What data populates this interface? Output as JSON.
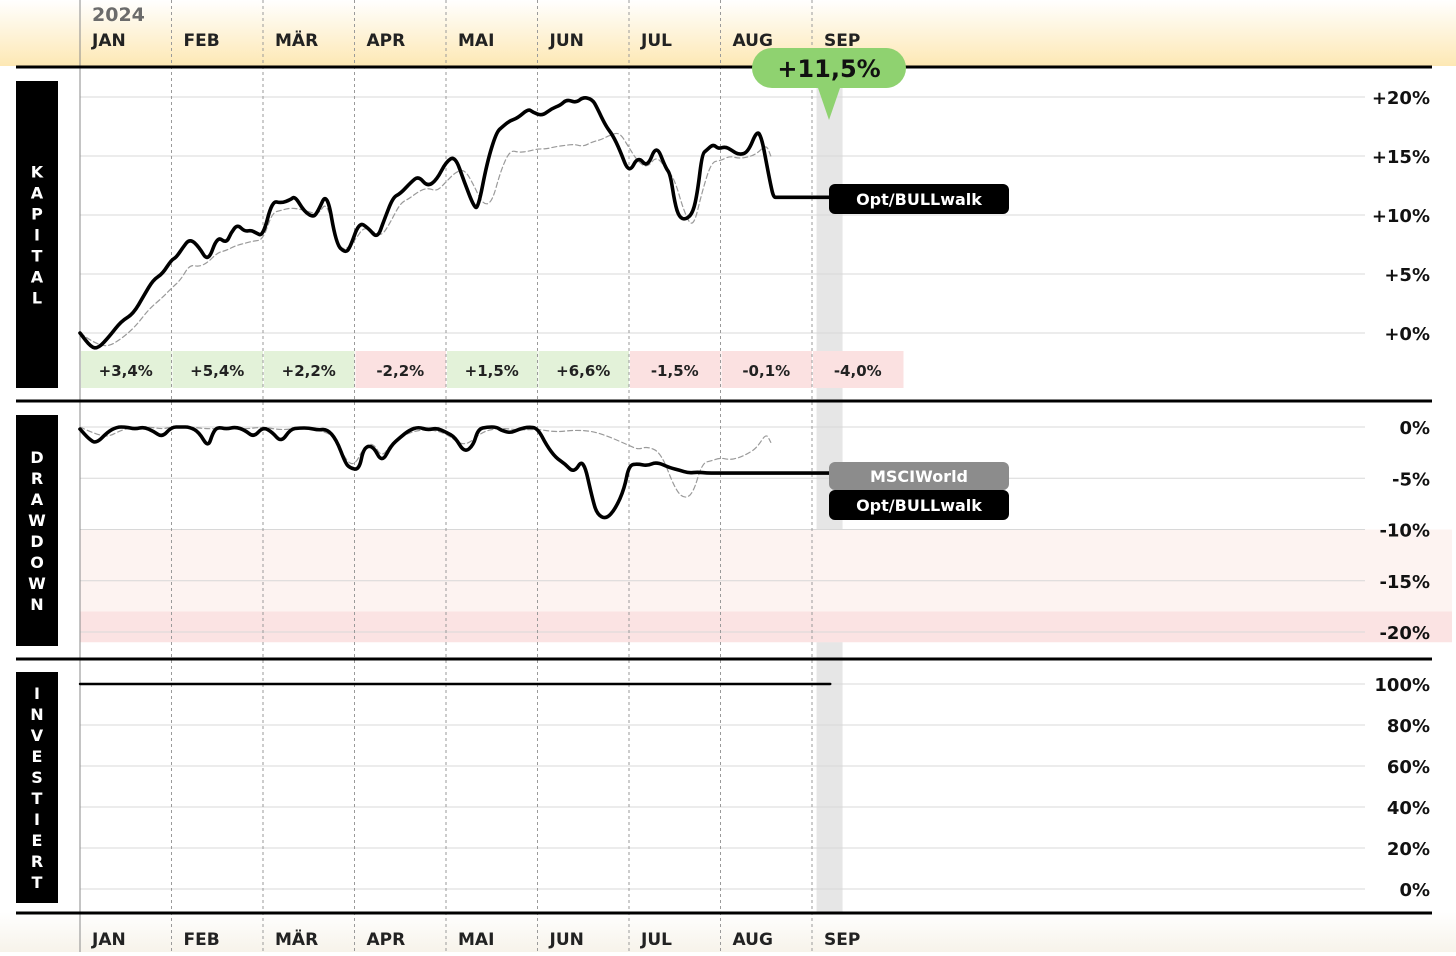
{
  "header": {
    "year": "2024"
  },
  "months": [
    "JAN",
    "FEB",
    "MÄR",
    "APR",
    "MAI",
    "JUN",
    "JUL",
    "AUG",
    "SEP"
  ],
  "colors": {
    "header_bg_top": "#ffffff",
    "header_bg_bottom": "#fde8b4",
    "positive_month": "#e3f2d9",
    "negative_month": "#fbe1e1",
    "badge_green": "#8fd270",
    "strategy_line": "#000000",
    "benchmark_line": "#9a9a9a",
    "current_week_band": "#e6e6e6",
    "drawdown_zone_light": "#fdf3f1",
    "drawdown_zone_dark": "#fbe3e3"
  },
  "chart_data": [
    {
      "type": "line",
      "panel_label": "KAPITAL",
      "ylim": [
        -2,
        20
      ],
      "yticks": [
        20,
        15,
        10,
        5,
        0
      ],
      "ytick_labels": [
        "+20%",
        "+15%",
        "+10%",
        "+5%",
        "+0%"
      ],
      "x_unit_note_hidden": true,
      "strategy_label": "Opt/BULLwalk",
      "badge": {
        "label": "+11,5%"
      },
      "monthly_returns": [
        {
          "label": "+3,4%",
          "value": 3.4
        },
        {
          "label": "+5,4%",
          "value": 5.4
        },
        {
          "label": "+2,2%",
          "value": 2.2
        },
        {
          "label": "-2,2%",
          "value": -2.2
        },
        {
          "label": "+1,5%",
          "value": 1.5
        },
        {
          "label": "+6,6%",
          "value": 6.6
        },
        {
          "label": "-1,5%",
          "value": -1.5
        },
        {
          "label": "-0,1%",
          "value": -0.1
        },
        {
          "label": "-4,0%",
          "value": -4.0
        }
      ],
      "series": [
        {
          "role": "strategy",
          "x": [
            0,
            0.12,
            0.2,
            0.32,
            0.45,
            0.58,
            0.7,
            0.8,
            0.9,
            1.0,
            1.05,
            1.12,
            1.2,
            1.3,
            1.4,
            1.5,
            1.6,
            1.65,
            1.72,
            1.8,
            1.87,
            1.92,
            2.0,
            2.1,
            2.2,
            2.3,
            2.35,
            2.45,
            2.55,
            2.6,
            2.7,
            2.8,
            2.9,
            2.95,
            3.05,
            3.15,
            3.25,
            3.32,
            3.42,
            3.5,
            3.62,
            3.7,
            3.8,
            3.9,
            4.0,
            4.1,
            4.2,
            4.3,
            4.35,
            4.45,
            4.55,
            4.62,
            4.7,
            4.78,
            4.9,
            4.95,
            5.05,
            5.15,
            5.25,
            5.32,
            5.42,
            5.5,
            5.6,
            5.65,
            5.75,
            5.82,
            5.9,
            6.0,
            6.1,
            6.2,
            6.3,
            6.4,
            6.45,
            6.5,
            6.55,
            6.62,
            6.7,
            6.75,
            6.8,
            6.85,
            6.92,
            6.98,
            7.05,
            7.12,
            7.2,
            7.3,
            7.4,
            7.45,
            7.5,
            7.55,
            7.58,
            7.62,
            7.7,
            7.75,
            7.8,
            7.85,
            7.9,
            7.95,
            8.0,
            8.05,
            8.1,
            8.15,
            8.2
          ],
          "values": [
            0,
            -1.2,
            -1.3,
            -0.3,
            1.0,
            1.6,
            3.2,
            4.5,
            5.0,
            6.2,
            6.4,
            7.2,
            8.0,
            7.3,
            6.0,
            8.2,
            7.6,
            8.5,
            9.2,
            8.6,
            8.7,
            8.5,
            8.2,
            11.2,
            11.0,
            11.3,
            11.6,
            10.3,
            9.8,
            10.3,
            12.0,
            7.5,
            6.8,
            7.2,
            9.4,
            8.9,
            8.0,
            9.5,
            11.5,
            11.8,
            12.8,
            13.3,
            12.4,
            13.0,
            14.5,
            15.0,
            12.8,
            10.8,
            10.5,
            14.5,
            17.0,
            17.5,
            18.0,
            18.2,
            19.0,
            18.7,
            18.4,
            19.0,
            19.3,
            19.8,
            19.5,
            20.0,
            19.8,
            19.1,
            17.5,
            16.8,
            15.5,
            13.5,
            15.0,
            14.0,
            16.0,
            14.0,
            13.5,
            11.0,
            9.8,
            9.6,
            10.2,
            12.0,
            15.2,
            15.5,
            16.0,
            15.6,
            15.8,
            15.5,
            15.1,
            15.3,
            17.2,
            16.5,
            14.5,
            12.5,
            11.5,
            11.5,
            11.5,
            11.5,
            11.5,
            11.5,
            11.5,
            11.5,
            11.5,
            11.5,
            11.5,
            11.5,
            11.5
          ]
        },
        {
          "role": "benchmark",
          "x": [
            0,
            0.15,
            0.3,
            0.45,
            0.6,
            0.75,
            0.9,
            1.0,
            1.1,
            1.2,
            1.3,
            1.4,
            1.5,
            1.6,
            1.7,
            1.8,
            1.9,
            2.0,
            2.1,
            2.2,
            2.3,
            2.4,
            2.5,
            2.6,
            2.7,
            2.8,
            2.9,
            3.0,
            3.1,
            3.2,
            3.3,
            3.4,
            3.5,
            3.6,
            3.7,
            3.8,
            3.9,
            4.0,
            4.1,
            4.2,
            4.3,
            4.4,
            4.5,
            4.6,
            4.7,
            4.8,
            4.9,
            5.0,
            5.1,
            5.2,
            5.3,
            5.4,
            5.5,
            5.6,
            5.7,
            5.8,
            5.9,
            6.0,
            6.1,
            6.2,
            6.3,
            6.4,
            6.5,
            6.6,
            6.7,
            6.8,
            6.9,
            7.0,
            7.1,
            7.2,
            7.3,
            7.4,
            7.5,
            7.55
          ],
          "values": [
            0,
            -0.8,
            -1.2,
            -0.5,
            0.5,
            2.0,
            3.0,
            3.8,
            4.5,
            5.8,
            5.6,
            6.0,
            6.8,
            7.0,
            7.4,
            7.6,
            7.8,
            7.9,
            10.2,
            10.4,
            10.6,
            10.5,
            10.3,
            10.0,
            11.2,
            7.5,
            7.0,
            7.8,
            9.0,
            8.6,
            8.2,
            9.5,
            11.0,
            11.4,
            12.0,
            12.3,
            12.0,
            12.8,
            13.6,
            13.9,
            12.6,
            10.9,
            11.0,
            13.8,
            15.5,
            15.3,
            15.4,
            15.6,
            15.6,
            15.8,
            15.9,
            16.0,
            15.8,
            16.2,
            16.4,
            16.8,
            17.0,
            15.7,
            14.5,
            14.0,
            15.0,
            14.0,
            13.0,
            10.3,
            8.8,
            12.0,
            14.5,
            14.6,
            15.0,
            14.8,
            14.9,
            15.2,
            16.0,
            15.0
          ]
        }
      ]
    },
    {
      "type": "line",
      "panel_label": "DRAWDOWN",
      "ylim": [
        -21,
        1
      ],
      "yticks": [
        0,
        -5,
        -10,
        -15,
        -20
      ],
      "ytick_labels": [
        "0%",
        "-5%",
        "-10%",
        "-15%",
        "-20%"
      ],
      "zones": [
        {
          "from": -18,
          "to": -10,
          "shade": "light"
        },
        {
          "from": -21,
          "to": -18,
          "shade": "dark"
        }
      ],
      "legend": [
        "MSCIWorld",
        "Opt/BULLwalk"
      ],
      "series": [
        {
          "role": "strategy",
          "x": [
            0,
            0.1,
            0.18,
            0.3,
            0.4,
            0.5,
            0.6,
            0.7,
            0.8,
            0.9,
            1.0,
            1.1,
            1.2,
            1.3,
            1.4,
            1.45,
            1.5,
            1.6,
            1.7,
            1.8,
            1.9,
            2.0,
            2.1,
            2.2,
            2.3,
            2.4,
            2.5,
            2.6,
            2.7,
            2.8,
            2.9,
            2.95,
            3.05,
            3.1,
            3.2,
            3.3,
            3.4,
            3.5,
            3.6,
            3.7,
            3.8,
            3.9,
            4.0,
            4.1,
            4.2,
            4.3,
            4.35,
            4.45,
            4.55,
            4.6,
            4.7,
            4.8,
            4.9,
            5.0,
            5.1,
            5.2,
            5.3,
            5.4,
            5.5,
            5.6,
            5.65,
            5.75,
            5.85,
            5.95,
            6.0,
            6.1,
            6.2,
            6.3,
            6.45,
            6.55,
            6.65,
            6.75,
            6.85,
            6.95,
            7.05,
            7.15,
            7.25,
            7.35,
            7.45,
            7.55,
            7.6,
            7.65,
            7.7,
            7.8,
            7.85,
            7.9,
            7.95,
            8.0,
            8.05,
            8.1,
            8.15,
            8.2
          ],
          "values": [
            -0.2,
            -1.2,
            -1.6,
            -0.5,
            0,
            0,
            -0.2,
            0,
            -0.4,
            -1.0,
            0,
            0,
            0,
            -0.5,
            -2.0,
            -0.6,
            0,
            -0.2,
            0,
            -0.3,
            -1.0,
            0,
            -0.5,
            -1.5,
            -0.2,
            -0.1,
            -0.1,
            -0.3,
            -0.2,
            -1.2,
            -3.5,
            -4.0,
            -4.2,
            -2.0,
            -1.8,
            -3.5,
            -1.8,
            -1.0,
            -0.3,
            0,
            -0.3,
            -0.1,
            -0.5,
            -1.0,
            -2.5,
            -1.8,
            -0.2,
            0,
            0,
            -0.3,
            -0.6,
            -0.2,
            0,
            -0.1,
            -1.8,
            -3.0,
            -3.6,
            -4.5,
            -3.0,
            -7.0,
            -8.5,
            -9.0,
            -8.0,
            -6.0,
            -3.7,
            -3.6,
            -3.8,
            -3.4,
            -4.0,
            -4.2,
            -4.5,
            -4.4,
            -4.5,
            -4.5,
            -4.5,
            -4.5,
            -4.5,
            -4.5,
            -4.5,
            -4.5,
            -4.5,
            -4.5,
            -4.5,
            -4.5,
            -4.5,
            -4.5,
            -4.5,
            -4.5,
            -4.5,
            -4.5,
            -4.5,
            -4.5
          ]
        },
        {
          "role": "benchmark",
          "x": [
            0,
            0.15,
            0.3,
            0.45,
            0.6,
            0.75,
            0.9,
            1.0,
            1.2,
            1.4,
            1.6,
            1.8,
            2.0,
            2.2,
            2.4,
            2.6,
            2.8,
            2.9,
            3.0,
            3.1,
            3.2,
            3.3,
            3.4,
            3.6,
            3.8,
            4.0,
            4.2,
            4.4,
            4.6,
            4.8,
            5.0,
            5.2,
            5.4,
            5.6,
            5.8,
            6.0,
            6.1,
            6.2,
            6.35,
            6.5,
            6.6,
            6.7,
            6.8,
            6.9,
            7.0,
            7.1,
            7.2,
            7.3,
            7.4,
            7.5,
            7.55
          ],
          "values": [
            0,
            -0.6,
            -1.0,
            -0.3,
            0,
            0,
            -0.2,
            0,
            0,
            -0.2,
            -0.1,
            -0.2,
            0,
            -0.3,
            -0.1,
            -0.2,
            -1.0,
            -3.2,
            -3.8,
            -2.0,
            -1.5,
            -3.0,
            -1.6,
            -0.5,
            -0.2,
            -0.6,
            -2.0,
            -0.4,
            -0.1,
            -0.3,
            -0.2,
            -0.5,
            -0.3,
            -0.4,
            -1.0,
            -1.8,
            -2.2,
            -1.9,
            -2.5,
            -6.0,
            -7.0,
            -6.5,
            -3.5,
            -3.3,
            -3.0,
            -3.2,
            -3.0,
            -2.6,
            -2.0,
            -0.6,
            -1.5
          ]
        }
      ]
    },
    {
      "type": "line",
      "panel_label": "INVESTIERT",
      "ylim": [
        0,
        100
      ],
      "yticks": [
        100,
        80,
        60,
        40,
        20,
        0
      ],
      "ytick_labels": [
        "100%",
        "80%",
        "60%",
        "40%",
        "20%",
        "0%"
      ],
      "series": [
        {
          "role": "strategy",
          "x": [
            0,
            8.2
          ],
          "values": [
            100,
            100
          ]
        }
      ]
    }
  ]
}
